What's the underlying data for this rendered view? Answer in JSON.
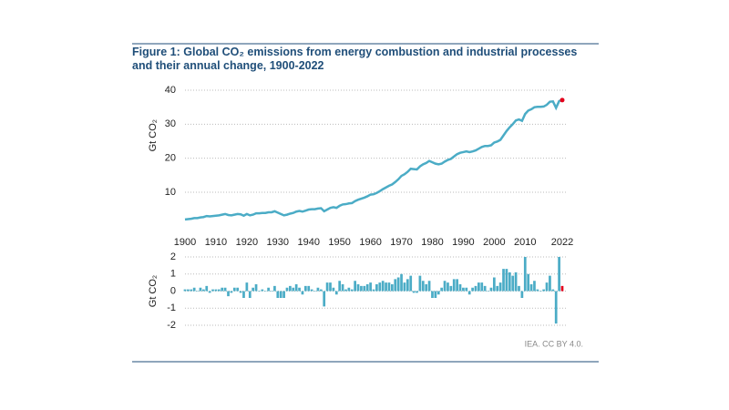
{
  "title": "Figure 1: Global CO₂ emissions from energy combustion and industrial processes and their annual change, 1900-2022",
  "source": "IEA. CC BY 4.0.",
  "chart_data": [
    {
      "type": "line",
      "ylabel": "Gt CO₂",
      "color": "#4bacc6",
      "highlight_color": "#e3001b",
      "grid": true,
      "xlim": [
        1900,
        2022
      ],
      "xticks": [
        1900,
        1910,
        1920,
        1930,
        1940,
        1950,
        1960,
        1970,
        1980,
        1990,
        2000,
        2010,
        2022
      ],
      "ylim": [
        0,
        40
      ],
      "yticks": [
        10,
        20,
        30,
        40
      ],
      "x": [
        1900,
        1901,
        1902,
        1903,
        1904,
        1905,
        1906,
        1907,
        1908,
        1909,
        1910,
        1911,
        1912,
        1913,
        1914,
        1915,
        1916,
        1917,
        1918,
        1919,
        1920,
        1921,
        1922,
        1923,
        1924,
        1925,
        1926,
        1927,
        1928,
        1929,
        1930,
        1931,
        1932,
        1933,
        1934,
        1935,
        1936,
        1937,
        1938,
        1939,
        1940,
        1941,
        1942,
        1943,
        1944,
        1945,
        1946,
        1947,
        1948,
        1949,
        1950,
        1951,
        1952,
        1953,
        1954,
        1955,
        1956,
        1957,
        1958,
        1959,
        1960,
        1961,
        1962,
        1963,
        1964,
        1965,
        1966,
        1967,
        1968,
        1969,
        1970,
        1971,
        1972,
        1973,
        1974,
        1975,
        1976,
        1977,
        1978,
        1979,
        1980,
        1981,
        1982,
        1983,
        1984,
        1985,
        1986,
        1987,
        1988,
        1989,
        1990,
        1991,
        1992,
        1993,
        1994,
        1995,
        1996,
        1997,
        1998,
        1999,
        2000,
        2001,
        2002,
        2003,
        2004,
        2005,
        2006,
        2007,
        2008,
        2009,
        2010,
        2011,
        2012,
        2013,
        2014,
        2015,
        2016,
        2017,
        2018,
        2019,
        2020,
        2021,
        2022
      ],
      "values": [
        2.0,
        2.1,
        2.2,
        2.4,
        2.4,
        2.6,
        2.7,
        3.0,
        2.9,
        3.0,
        3.1,
        3.2,
        3.4,
        3.6,
        3.3,
        3.2,
        3.4,
        3.6,
        3.5,
        3.1,
        3.6,
        3.2,
        3.4,
        3.8,
        3.8,
        3.9,
        3.9,
        4.1,
        4.1,
        4.4,
        4.0,
        3.6,
        3.2,
        3.4,
        3.7,
        3.9,
        4.3,
        4.5,
        4.3,
        4.6,
        4.9,
        5.0,
        5.0,
        5.2,
        5.3,
        4.4,
        4.9,
        5.4,
        5.6,
        5.4,
        6.0,
        6.4,
        6.5,
        6.7,
        6.8,
        7.4,
        7.8,
        8.1,
        8.4,
        8.8,
        9.3,
        9.4,
        9.8,
        10.3,
        10.9,
        11.4,
        11.9,
        12.3,
        13.0,
        13.8,
        14.8,
        15.3,
        16.0,
        16.9,
        16.8,
        16.7,
        17.6,
        18.2,
        18.6,
        19.2,
        18.8,
        18.4,
        18.2,
        18.4,
        19.0,
        19.5,
        19.8,
        20.5,
        21.2,
        21.6,
        21.8,
        22.0,
        21.8,
        22.0,
        22.3,
        22.8,
        23.3,
        23.6,
        23.6,
        23.8,
        24.6,
        24.9,
        25.4,
        26.7,
        28.0,
        29.1,
        30.0,
        31.1,
        31.4,
        31.0,
        33.0,
        34.0,
        34.4,
        35.0,
        35.1,
        35.1,
        35.2,
        35.7,
        36.6,
        36.7,
        34.8,
        36.8,
        37.1
      ]
    },
    {
      "type": "bar",
      "ylabel": "Gt CO₂",
      "color": "#4bacc6",
      "highlight_color": "#e3001b",
      "grid": true,
      "xlim": [
        1900,
        2022
      ],
      "ylim": [
        -2,
        2
      ],
      "yticks": [
        -2,
        -1,
        0,
        1,
        2
      ],
      "x": [
        1900,
        1901,
        1902,
        1903,
        1904,
        1905,
        1906,
        1907,
        1908,
        1909,
        1910,
        1911,
        1912,
        1913,
        1914,
        1915,
        1916,
        1917,
        1918,
        1919,
        1920,
        1921,
        1922,
        1923,
        1924,
        1925,
        1926,
        1927,
        1928,
        1929,
        1930,
        1931,
        1932,
        1933,
        1934,
        1935,
        1936,
        1937,
        1938,
        1939,
        1940,
        1941,
        1942,
        1943,
        1944,
        1945,
        1946,
        1947,
        1948,
        1949,
        1950,
        1951,
        1952,
        1953,
        1954,
        1955,
        1956,
        1957,
        1958,
        1959,
        1960,
        1961,
        1962,
        1963,
        1964,
        1965,
        1966,
        1967,
        1968,
        1969,
        1970,
        1971,
        1972,
        1973,
        1974,
        1975,
        1976,
        1977,
        1978,
        1979,
        1980,
        1981,
        1982,
        1983,
        1984,
        1985,
        1986,
        1987,
        1988,
        1989,
        1990,
        1991,
        1992,
        1993,
        1994,
        1995,
        1996,
        1997,
        1998,
        1999,
        2000,
        2001,
        2002,
        2003,
        2004,
        2005,
        2006,
        2007,
        2008,
        2009,
        2010,
        2011,
        2012,
        2013,
        2014,
        2015,
        2016,
        2017,
        2018,
        2019,
        2020,
        2021,
        2022
      ],
      "values": [
        0.1,
        0.1,
        0.1,
        0.2,
        0.0,
        0.2,
        0.1,
        0.3,
        -0.1,
        0.1,
        0.1,
        0.1,
        0.2,
        0.2,
        -0.3,
        -0.1,
        0.2,
        0.2,
        -0.1,
        -0.4,
        0.5,
        -0.4,
        0.2,
        0.4,
        0.0,
        0.1,
        0.0,
        0.2,
        0.0,
        0.3,
        -0.4,
        -0.4,
        -0.4,
        0.2,
        0.3,
        0.2,
        0.4,
        0.2,
        -0.2,
        0.3,
        0.3,
        0.1,
        0.0,
        0.2,
        0.1,
        -0.9,
        0.5,
        0.5,
        0.2,
        -0.2,
        0.6,
        0.4,
        0.1,
        0.2,
        0.1,
        0.6,
        0.4,
        0.3,
        0.3,
        0.4,
        0.5,
        0.1,
        0.4,
        0.5,
        0.6,
        0.5,
        0.5,
        0.4,
        0.7,
        0.8,
        1.0,
        0.5,
        0.7,
        0.9,
        -0.1,
        -0.1,
        0.9,
        0.6,
        0.4,
        0.6,
        -0.4,
        -0.4,
        -0.2,
        0.2,
        0.6,
        0.5,
        0.3,
        0.7,
        0.7,
        0.4,
        0.2,
        0.2,
        -0.2,
        0.2,
        0.3,
        0.5,
        0.5,
        0.3,
        0.0,
        0.2,
        0.8,
        0.3,
        0.5,
        1.3,
        1.3,
        1.1,
        0.9,
        1.1,
        0.3,
        -0.4,
        2.0,
        1.0,
        0.4,
        0.6,
        0.1,
        0.0,
        0.1,
        0.5,
        0.9,
        0.1,
        -1.9,
        2.0,
        0.3
      ]
    }
  ]
}
